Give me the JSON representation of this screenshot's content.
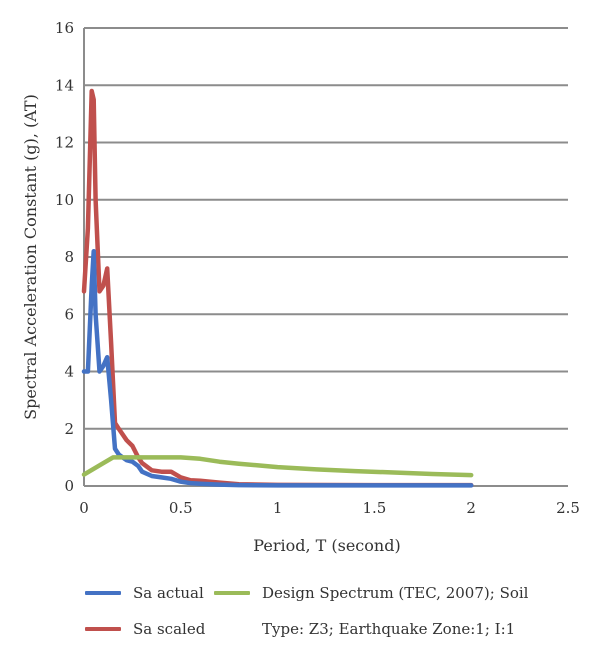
{
  "chart_data": {
    "type": "line",
    "title": "",
    "xlabel": "Period, T (second)",
    "ylabel": "Spectral Acceleration Constant (g), (AT)",
    "xlim": [
      0,
      2.5
    ],
    "ylim": [
      0,
      16
    ],
    "x_ticks": [
      "0",
      "0.5",
      "1",
      "1.5",
      "2",
      "2.5"
    ],
    "y_ticks": [
      "0",
      "2",
      "4",
      "6",
      "8",
      "10",
      "12",
      "14",
      "16"
    ],
    "grid": "horizontal",
    "legend_position": "bottom",
    "series": [
      {
        "name": "Sa actual",
        "color": "#4472c4",
        "x": [
          0,
          0.02,
          0.04,
          0.05,
          0.06,
          0.08,
          0.1,
          0.12,
          0.14,
          0.16,
          0.18,
          0.2,
          0.22,
          0.25,
          0.28,
          0.3,
          0.35,
          0.4,
          0.45,
          0.5,
          0.55,
          0.6,
          0.7,
          0.8,
          1.0,
          1.5,
          2.0
        ],
        "y": [
          4.0,
          4.0,
          7.0,
          8.2,
          6.0,
          4.0,
          4.2,
          4.5,
          3.0,
          1.3,
          1.1,
          1.0,
          0.9,
          0.85,
          0.7,
          0.5,
          0.35,
          0.3,
          0.25,
          0.15,
          0.1,
          0.08,
          0.05,
          0.03,
          0.02,
          0.02,
          0.02
        ]
      },
      {
        "name": "Sa scaled",
        "color": "#c0504d",
        "x": [
          0,
          0.02,
          0.04,
          0.05,
          0.06,
          0.08,
          0.1,
          0.12,
          0.14,
          0.16,
          0.18,
          0.2,
          0.22,
          0.25,
          0.28,
          0.3,
          0.35,
          0.4,
          0.45,
          0.5,
          0.55,
          0.6,
          0.7,
          0.8,
          1.0,
          1.5,
          2.0
        ],
        "y": [
          6.8,
          9.0,
          13.8,
          13.5,
          10.0,
          6.8,
          7.0,
          7.6,
          5.0,
          2.2,
          2.0,
          1.8,
          1.6,
          1.4,
          1.0,
          0.8,
          0.55,
          0.5,
          0.5,
          0.3,
          0.2,
          0.18,
          0.12,
          0.06,
          0.04,
          0.03,
          0.03
        ]
      },
      {
        "name": "Design Spectrum (TEC, 2007); Soil Type: Z3; Earthquake Zone:1; I:1",
        "color": "#9bbb59",
        "x": [
          0,
          0.05,
          0.1,
          0.15,
          0.2,
          0.3,
          0.4,
          0.5,
          0.6,
          0.7,
          0.8,
          0.9,
          1.0,
          1.2,
          1.4,
          1.6,
          1.8,
          2.0
        ],
        "y": [
          0.4,
          0.6,
          0.8,
          1.0,
          1.0,
          1.0,
          1.0,
          1.0,
          0.95,
          0.85,
          0.78,
          0.72,
          0.66,
          0.58,
          0.52,
          0.47,
          0.42,
          0.38
        ]
      }
    ]
  },
  "legend": {
    "items": [
      {
        "label": "Sa actual",
        "color": "#4472c4"
      },
      {
        "label": "Sa scaled",
        "color": "#c0504d"
      },
      {
        "label_line1": "Design Spectrum (TEC, 2007); Soil",
        "label_line2": "Type: Z3; Earthquake Zone:1; I:1",
        "color": "#9bbb59"
      }
    ]
  }
}
